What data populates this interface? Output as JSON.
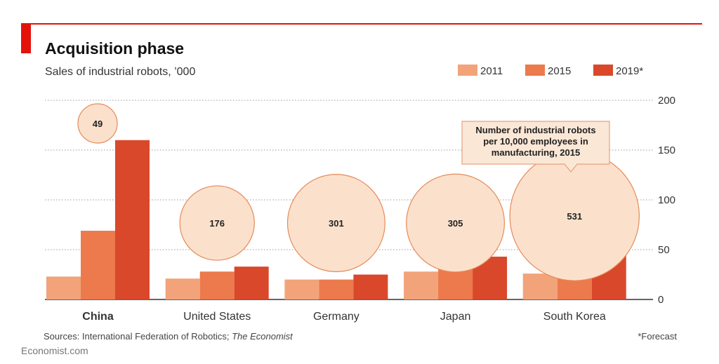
{
  "header": {
    "title": "Acquisition phase",
    "subtitle": "Sales of industrial robots, ’000"
  },
  "colors": {
    "accent_bar": "#e3120b",
    "rule": "#e3120b",
    "series_2011": "#f2a37a",
    "series_2015": "#ec7a4c",
    "series_2019": "#d9482b",
    "bubble_fill": "#fbe1cc",
    "bubble_stroke": "#e58a5a",
    "gridline": "#9a9a9a",
    "axis": "#333333",
    "text": "#222222",
    "muted_text": "#555555"
  },
  "callout": {
    "lines": [
      "Number of industrial robots",
      "per 10,000 employees in",
      "manufacturing, 2015"
    ]
  },
  "footer": {
    "sources_prefix": "Sources: International Federation of Robotics; ",
    "sources_italic": "The Economist",
    "note": "*Forecast",
    "brand": "Economist.com"
  },
  "chart_data": {
    "type": "bar",
    "categories": [
      "China",
      "United States",
      "Germany",
      "Japan",
      "South Korea"
    ],
    "series": [
      {
        "name": "2011",
        "values": [
          23,
          21,
          20,
          28,
          26
        ]
      },
      {
        "name": "2015",
        "values": [
          69,
          28,
          20,
          35,
          38
        ]
      },
      {
        "name": "2019*",
        "values": [
          160,
          33,
          25,
          43,
          46
        ]
      }
    ],
    "density_2015": [
      49,
      176,
      301,
      305,
      531
    ],
    "yticks": [
      0,
      50,
      100,
      150,
      200
    ],
    "ylim": [
      0,
      200
    ],
    "ylabel": "",
    "xlabel": "",
    "grid": true,
    "legend_position": "top-right"
  }
}
